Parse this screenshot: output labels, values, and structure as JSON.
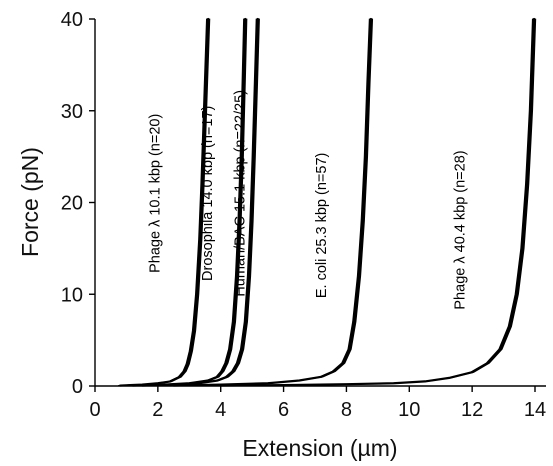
{
  "chart_data": {
    "type": "line",
    "title": "",
    "xlabel": "Extension (µm)",
    "ylabel": "Force (pN)",
    "xlim": [
      0,
      14.5
    ],
    "ylim": [
      0,
      40
    ],
    "xticks": [
      "0",
      "2",
      "4",
      "6",
      "8",
      "10",
      "12",
      "14"
    ],
    "yticks": [
      "0",
      "10",
      "20",
      "30",
      "40"
    ],
    "grid": false,
    "legend": "none",
    "series": [
      {
        "name": "Phage λ 10.1 kbp (n=20)",
        "x": [
          0.8,
          1.5,
          2.0,
          2.4,
          2.7,
          2.85,
          2.95,
          3.05,
          3.15,
          3.25,
          3.35,
          3.42,
          3.48,
          3.55,
          3.6
        ],
        "y": [
          0.05,
          0.15,
          0.3,
          0.5,
          1.0,
          1.6,
          2.4,
          3.8,
          6.0,
          10.0,
          16.0,
          22.0,
          28.0,
          35.0,
          40.0
        ]
      },
      {
        "name": "Drosophila 14.0 kbp (n=17)",
        "x": [
          1.2,
          2.2,
          3.0,
          3.6,
          3.9,
          4.05,
          4.18,
          4.3,
          4.42,
          4.52,
          4.6,
          4.67,
          4.73,
          4.78
        ],
        "y": [
          0.05,
          0.15,
          0.3,
          0.6,
          1.0,
          1.6,
          2.5,
          4.0,
          7.0,
          12.0,
          18.0,
          25.0,
          33.0,
          40.0
        ]
      },
      {
        "name": "Human/BAC 15.1 kbp (n=22/25)",
        "x": [
          1.5,
          2.5,
          3.3,
          3.9,
          4.2,
          4.4,
          4.55,
          4.68,
          4.8,
          4.9,
          4.98,
          5.05,
          5.12,
          5.18
        ],
        "y": [
          0.05,
          0.15,
          0.3,
          0.6,
          1.0,
          1.6,
          2.5,
          4.0,
          7.0,
          12.0,
          18.0,
          25.0,
          33.0,
          40.0
        ]
      },
      {
        "name": "E. coli 25.3 kbp (n=57)",
        "x": [
          2.5,
          4.0,
          5.5,
          6.5,
          7.2,
          7.6,
          7.9,
          8.1,
          8.25,
          8.4,
          8.52,
          8.62,
          8.7,
          8.78
        ],
        "y": [
          0.05,
          0.15,
          0.3,
          0.6,
          1.0,
          1.6,
          2.5,
          4.0,
          7.0,
          12.0,
          18.0,
          25.0,
          33.0,
          40.0
        ]
      },
      {
        "name": "Phage λ 40.4 kbp (n=28)",
        "x": [
          4.0,
          6.0,
          8.0,
          9.5,
          10.5,
          11.3,
          12.0,
          12.5,
          12.9,
          13.2,
          13.42,
          13.6,
          13.75,
          13.87,
          13.97
        ],
        "y": [
          0.05,
          0.1,
          0.2,
          0.3,
          0.5,
          0.9,
          1.5,
          2.5,
          4.0,
          6.5,
          10.0,
          15.0,
          22.0,
          30.0,
          40.0
        ]
      }
    ],
    "annotations": [
      {
        "text": "Phage λ  10.1 kbp (n=20)",
        "series": 0,
        "x": 2.05,
        "y": 21
      },
      {
        "text": "Drosophila  14.0 kbp (n=17)",
        "series": 1,
        "x": 3.72,
        "y": 21
      },
      {
        "text": "Human/BAC 15.1 kbp (n=22/25)",
        "series": 2,
        "x": 4.75,
        "y": 21
      },
      {
        "text": "E. coli  25.3 kbp (n=57)",
        "series": 3,
        "x": 7.35,
        "y": 17.5
      },
      {
        "text": "Phage λ  40.4 kbp (n=28)",
        "series": 4,
        "x": 11.75,
        "y": 17
      }
    ]
  }
}
